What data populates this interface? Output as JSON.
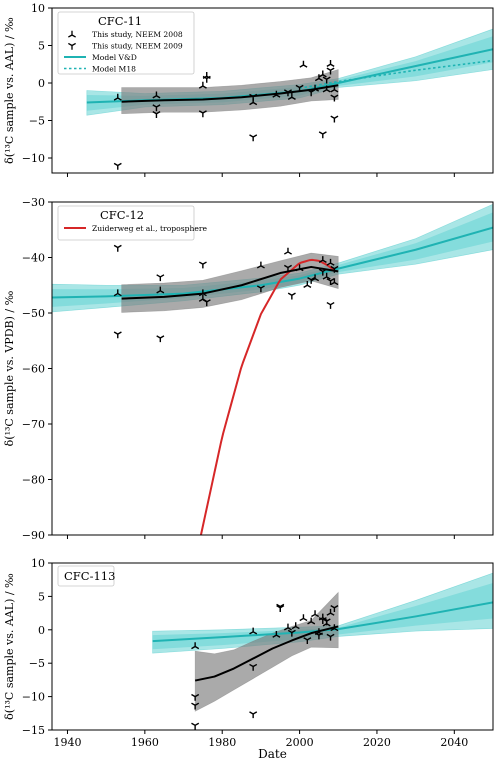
{
  "figure": {
    "xlabel": "Date",
    "x_ticks": [
      1940,
      1960,
      1980,
      2000,
      2020,
      2040
    ],
    "xlim": [
      1936,
      2050
    ]
  },
  "chart_data": [
    {
      "type": "line",
      "id": "cfc11",
      "title": "CFC-11",
      "ylabel": "δ(¹³C sample vs. AAL) / ‰",
      "ylim": [
        -12,
        10
      ],
      "y_ticks": [
        -10,
        -5,
        0,
        5,
        10
      ],
      "legend": {
        "placement": "top-left",
        "entries": [
          {
            "label": "This study, NEEM 2008",
            "kind": "marker-up"
          },
          {
            "label": "This study, NEEM 2009",
            "kind": "marker-down"
          },
          {
            "label": "Model V&D",
            "kind": "line-solid"
          },
          {
            "label": "Model M18",
            "kind": "line-dotted"
          }
        ]
      },
      "colors": {
        "model": "#1fb3b3",
        "band": "#40c8c8",
        "fit": "#000000",
        "fit_band": "#7d7d7d",
        "markers": "#000000"
      },
      "series": [
        {
          "name": "Model V&D",
          "style": "solid",
          "x": [
            1945,
            1960,
            1980,
            2000,
            2010,
            2025,
            2050
          ],
          "y": [
            -2.6,
            -2.3,
            -2.0,
            -1.1,
            0.0,
            1.7,
            4.5
          ]
        },
        {
          "name": "Model M18",
          "style": "dotted",
          "x": [
            2000,
            2010,
            2030,
            2050
          ],
          "y": [
            -0.7,
            0.2,
            1.7,
            3.0
          ]
        }
      ],
      "model_band": {
        "x": [
          1945,
          1960,
          1980,
          2000,
          2010,
          2030,
          2050
        ],
        "lower": [
          -4.3,
          -3.2,
          -2.9,
          -2.0,
          -0.6,
          0.3,
          1.8
        ],
        "upper": [
          -1.0,
          -1.4,
          -1.1,
          -0.2,
          0.6,
          3.5,
          7.2
        ]
      },
      "fit": {
        "x": [
          1954,
          1965,
          1975,
          1985,
          1995,
          2003,
          2010
        ],
        "y": [
          -2.5,
          -2.3,
          -2.2,
          -1.9,
          -1.4,
          -0.9,
          -0.3
        ]
      },
      "fit_band": {
        "x": [
          1954,
          1965,
          1975,
          1985,
          1995,
          2003,
          2010
        ],
        "lower": [
          -4.1,
          -3.9,
          -3.9,
          -3.6,
          -3.1,
          -2.4,
          -2.2
        ],
        "upper": [
          -0.6,
          -0.6,
          -0.6,
          -0.3,
          0.2,
          0.7,
          1.8
        ]
      },
      "points_2008": {
        "x": [
          1953,
          1963,
          1975,
          1976,
          1988,
          1994,
          1998,
          2001,
          2004,
          2005,
          2006,
          2007,
          2008,
          2009
        ],
        "y": [
          -2.0,
          -1.7,
          -0.4,
          0.9,
          -2.6,
          -1.6,
          -1.9,
          2.4,
          -0.8,
          0.6,
          1.1,
          -0.9,
          2.5,
          -0.9
        ]
      },
      "points_2009": {
        "x": [
          1953,
          1963,
          1963,
          1975,
          1976,
          1988,
          1988,
          1997,
          2000,
          2003,
          2006,
          2007,
          2008,
          2009,
          2009
        ],
        "y": [
          -11.0,
          -3.2,
          -4.1,
          -4.0,
          0.6,
          -7.2,
          -1.8,
          -1.2,
          -0.6,
          -1.2,
          -6.8,
          0.5,
          1.7,
          -1.9,
          -4.7
        ]
      }
    },
    {
      "type": "line",
      "id": "cfc12",
      "title": "CFC-12",
      "ylabel": "δ(¹³C sample vs. VPDB) / ‰",
      "ylim": [
        -90,
        -30
      ],
      "y_ticks": [
        -90,
        -80,
        -70,
        -60,
        -50,
        -40,
        -30
      ],
      "legend": {
        "placement": "top-left",
        "entries": [
          {
            "label": "Zuiderweg et al., troposphere",
            "kind": "line-red"
          }
        ]
      },
      "colors": {
        "model": "#1fb3b3",
        "band": "#40c8c8",
        "fit": "#000000",
        "fit_band": "#7d7d7d",
        "markers": "#000000",
        "troposphere": "#d62728"
      },
      "series": [
        {
          "name": "Model V&D",
          "style": "solid",
          "x": [
            1936,
            1950,
            1970,
            1990,
            2000,
            2010,
            2030,
            2050
          ],
          "y": [
            -47.2,
            -47.0,
            -46.5,
            -45.0,
            -43.8,
            -42.0,
            -38.6,
            -34.6
          ]
        },
        {
          "name": "Zuiderweg et al., troposphere",
          "style": "red",
          "x": [
            1974.5,
            1980,
            1985,
            1990,
            1995,
            2000,
            2003,
            2005,
            2007,
            2009
          ],
          "y": [
            -90,
            -72.3,
            -59.6,
            -50.2,
            -44.0,
            -41.0,
            -40.4,
            -40.6,
            -41.3,
            -42.3
          ]
        }
      ],
      "model_band": {
        "x": [
          1936,
          1950,
          1970,
          1990,
          2000,
          2010,
          2030,
          2050
        ],
        "lower": [
          -49.8,
          -49.0,
          -47.8,
          -46.2,
          -45.0,
          -43.0,
          -41.2,
          -38.6
        ],
        "upper": [
          -44.8,
          -45.0,
          -45.0,
          -43.7,
          -42.8,
          -41.0,
          -36.6,
          -30.4
        ]
      },
      "fit": {
        "x": [
          1954,
          1965,
          1975,
          1985,
          1995,
          2003,
          2010
        ],
        "y": [
          -47.4,
          -47.1,
          -46.5,
          -45.0,
          -42.8,
          -41.7,
          -42.5
        ]
      },
      "fit_band": {
        "x": [
          1954,
          1965,
          1975,
          1985,
          1995,
          2003,
          2010
        ],
        "lower": [
          -49.9,
          -49.6,
          -49.0,
          -47.6,
          -45.4,
          -44.2,
          -45.6
        ],
        "upper": [
          -44.9,
          -44.6,
          -44.1,
          -42.4,
          -40.6,
          -39.2,
          -39.8
        ]
      },
      "points_2008": {
        "x": [
          1953,
          1964,
          1975,
          1975,
          1990,
          1997,
          2000,
          2002,
          2004,
          2006,
          2007,
          2008,
          2009
        ],
        "y": [
          -46.5,
          -46.0,
          -47.5,
          -46.5,
          -41.5,
          -39.0,
          -42.0,
          -45.0,
          -43.8,
          -40.5,
          -43.5,
          -41.0,
          -44.5
        ]
      },
      "points_2009": {
        "x": [
          1953,
          1953,
          1964,
          1964,
          1975,
          1976,
          1990,
          1997,
          1998,
          2003,
          2006,
          2008,
          2008,
          2009
        ],
        "y": [
          -38.2,
          -53.8,
          -43.5,
          -54.5,
          -41.2,
          -48.0,
          -45.5,
          -41.8,
          -46.8,
          -44.0,
          -42.5,
          -44.2,
          -48.5,
          -42.0
        ]
      }
    },
    {
      "type": "line",
      "id": "cfc113",
      "title": "CFC-113",
      "ylabel": "δ(¹³C sample vs. AAL) / ‰",
      "ylim": [
        -15,
        10
      ],
      "y_ticks": [
        -15,
        -10,
        -5,
        0,
        5,
        10
      ],
      "legend": {
        "placement": "top-left",
        "entries": []
      },
      "colors": {
        "model": "#1fb3b3",
        "band": "#40c8c8",
        "fit": "#000000",
        "fit_band": "#7d7d7d",
        "markers": "#000000"
      },
      "series": [
        {
          "name": "Model V&D",
          "style": "solid",
          "x": [
            1962,
            1980,
            2000,
            2010,
            2030,
            2050
          ],
          "y": [
            -1.7,
            -1.1,
            -0.4,
            0.1,
            2.0,
            4.1
          ]
        }
      ],
      "model_band": {
        "x": [
          1962,
          1980,
          2000,
          2010,
          2030,
          2050
        ],
        "lower": [
          -3.5,
          -2.8,
          -1.8,
          -1.0,
          -0.2,
          0.2
        ],
        "upper": [
          -0.2,
          0.0,
          0.4,
          0.6,
          4.4,
          8.5
        ]
      },
      "fit": {
        "x": [
          1973,
          1978,
          1983,
          1988,
          1993,
          1998,
          2003,
          2010
        ],
        "y": [
          -7.6,
          -7.0,
          -5.8,
          -4.3,
          -2.8,
          -1.6,
          -0.5,
          0.5
        ]
      },
      "fit_band": {
        "x": [
          1973,
          1978,
          1983,
          1988,
          1993,
          1998,
          2003,
          2010
        ],
        "lower": [
          -12.2,
          -10.7,
          -9.0,
          -7.3,
          -5.6,
          -3.9,
          -2.6,
          -2.7
        ],
        "upper": [
          -3.2,
          -3.6,
          -3.0,
          -1.7,
          -0.5,
          0.5,
          1.4,
          5.6
        ]
      },
      "points_2008": {
        "x": [
          1973,
          1988,
          1994,
          1997,
          1999,
          2001,
          2003,
          2004,
          2005,
          2006,
          2007,
          2008,
          2009
        ],
        "y": [
          -2.5,
          -0.3,
          -0.8,
          0.3,
          0.5,
          1.7,
          1.2,
          2.3,
          -0.4,
          1.8,
          0.9,
          2.5,
          0.2
        ]
      },
      "points_2009": {
        "x": [
          1973,
          1973,
          1973,
          1988,
          1988,
          1995,
          1995,
          1998,
          2002,
          2005,
          2006,
          2007,
          2008,
          2009
        ],
        "y": [
          -10.0,
          -11.3,
          -14.3,
          -5.5,
          -12.6,
          3.5,
          3.3,
          -0.4,
          -1.5,
          -0.8,
          1.5,
          1.3,
          -1.0,
          3.3
        ]
      }
    }
  ]
}
